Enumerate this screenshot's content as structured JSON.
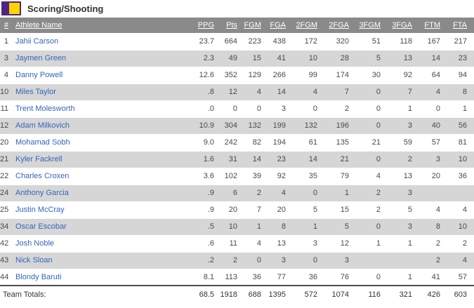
{
  "title": "Scoring/Shooting",
  "colors": {
    "logo_purple": "#4F2683",
    "logo_gold": "#FFD500",
    "header_bg": "#8a8a8a",
    "alt_row_bg": "#d6d6d6",
    "athlete_link_blue": "#3366bb"
  },
  "table": {
    "columns": [
      "#",
      "Athlete Name",
      "PPG",
      "Pts",
      "FGM",
      "FGA",
      "2FGM",
      "2FGA",
      "3FGM",
      "3FGA",
      "FTM",
      "FTA"
    ],
    "rows": [
      {
        "num": "1",
        "name": "Jahii Carson",
        "stats": [
          "23.7",
          "664",
          "223",
          "438",
          "172",
          "320",
          "51",
          "118",
          "167",
          "217"
        ]
      },
      {
        "num": "3",
        "name": "Jaymen Green",
        "stats": [
          "2.3",
          "49",
          "15",
          "41",
          "10",
          "28",
          "5",
          "13",
          "14",
          "23"
        ]
      },
      {
        "num": "4",
        "name": "Danny Powell",
        "stats": [
          "12.6",
          "352",
          "129",
          "266",
          "99",
          "174",
          "30",
          "92",
          "64",
          "94"
        ]
      },
      {
        "num": "10",
        "name": "Miles Taylor",
        "stats": [
          ".8",
          "12",
          "4",
          "14",
          "4",
          "7",
          "0",
          "7",
          "4",
          "8"
        ]
      },
      {
        "num": "11",
        "name": "Trent Molesworth",
        "stats": [
          ".0",
          "0",
          "0",
          "3",
          "0",
          "2",
          "0",
          "1",
          "0",
          "1"
        ]
      },
      {
        "num": "12",
        "name": "Adam Milkovich",
        "stats": [
          "10.9",
          "304",
          "132",
          "199",
          "132",
          "196",
          "0",
          "3",
          "40",
          "56"
        ]
      },
      {
        "num": "20",
        "name": "Mohamad Sobh",
        "stats": [
          "9.0",
          "242",
          "82",
          "194",
          "61",
          "135",
          "21",
          "59",
          "57",
          "81"
        ]
      },
      {
        "num": "21",
        "name": "Kyler Fackrell",
        "stats": [
          "1.6",
          "31",
          "14",
          "23",
          "14",
          "21",
          "0",
          "2",
          "3",
          "10"
        ]
      },
      {
        "num": "22",
        "name": "Charles Croxen",
        "stats": [
          "3.6",
          "102",
          "39",
          "92",
          "35",
          "79",
          "4",
          "13",
          "20",
          "36"
        ]
      },
      {
        "num": "24",
        "name": "Anthony Garcia",
        "stats": [
          ".9",
          "6",
          "2",
          "4",
          "0",
          "1",
          "2",
          "3",
          "",
          ""
        ]
      },
      {
        "num": "25",
        "name": "Justin McCray",
        "stats": [
          ".9",
          "20",
          "7",
          "20",
          "5",
          "15",
          "2",
          "5",
          "4",
          "4"
        ]
      },
      {
        "num": "34",
        "name": "Oscar Escobar",
        "stats": [
          ".5",
          "10",
          "1",
          "8",
          "1",
          "5",
          "0",
          "3",
          "8",
          "10"
        ]
      },
      {
        "num": "42",
        "name": "Josh Noble",
        "stats": [
          ".6",
          "11",
          "4",
          "13",
          "3",
          "12",
          "1",
          "1",
          "2",
          "2"
        ]
      },
      {
        "num": "43",
        "name": "Nick Sloan",
        "stats": [
          ".2",
          "2",
          "0",
          "3",
          "0",
          "3",
          "",
          "",
          "2",
          "4"
        ]
      },
      {
        "num": "44",
        "name": "Blondy Baruti",
        "stats": [
          "8.1",
          "113",
          "36",
          "77",
          "36",
          "76",
          "0",
          "1",
          "41",
          "57"
        ]
      }
    ],
    "totals": {
      "label": "Team Totals:",
      "stats": [
        "68.5",
        "1918",
        "688",
        "1395",
        "572",
        "1074",
        "116",
        "321",
        "426",
        "603"
      ]
    }
  }
}
